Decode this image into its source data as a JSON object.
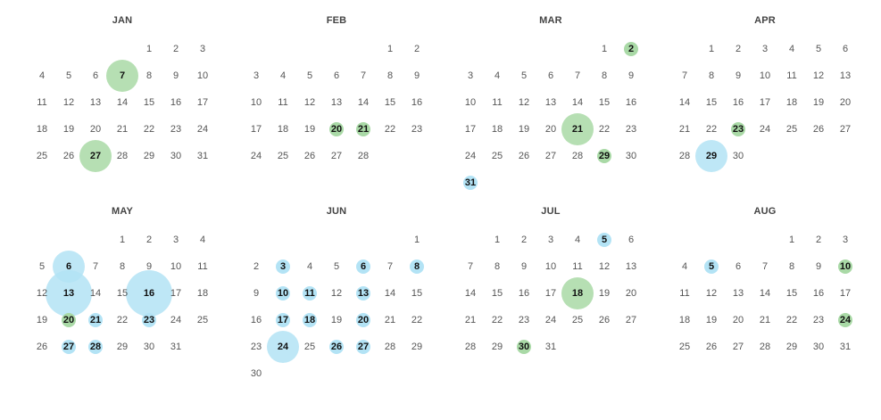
{
  "colors": {
    "green": "#a9d9a6",
    "blue": "#b3e3f5",
    "text": "#555555",
    "marked_text": "#111111"
  },
  "months": [
    {
      "name": "JAN",
      "start_dow": 4,
      "days": 31,
      "marks": [
        {
          "day": 7,
          "level": 3,
          "color": "green"
        },
        {
          "day": 27,
          "level": 3,
          "color": "green"
        }
      ]
    },
    {
      "name": "FEB",
      "start_dow": 5,
      "days": 28,
      "marks": [
        {
          "day": 20,
          "level": 1,
          "color": "green"
        },
        {
          "day": 21,
          "level": 1,
          "color": "green"
        }
      ]
    },
    {
      "name": "MAR",
      "start_dow": 5,
      "days": 31,
      "marks": [
        {
          "day": 2,
          "level": 1,
          "color": "green"
        },
        {
          "day": 21,
          "level": 3,
          "color": "green"
        },
        {
          "day": 29,
          "level": 1,
          "color": "green"
        },
        {
          "day": 31,
          "level": 1,
          "color": "blue"
        }
      ]
    },
    {
      "name": "APR",
      "start_dow": 1,
      "days": 30,
      "marks": [
        {
          "day": 23,
          "level": 1,
          "color": "green"
        },
        {
          "day": 29,
          "level": 3,
          "color": "blue"
        }
      ]
    },
    {
      "name": "MAY",
      "start_dow": 3,
      "days": 31,
      "marks": [
        {
          "day": 6,
          "level": 3,
          "color": "blue"
        },
        {
          "day": 13,
          "level": 5,
          "color": "blue"
        },
        {
          "day": 16,
          "level": 5,
          "color": "blue"
        },
        {
          "day": 20,
          "level": 1,
          "color": "green"
        },
        {
          "day": 21,
          "level": 1,
          "color": "blue"
        },
        {
          "day": 23,
          "level": 1,
          "color": "blue"
        },
        {
          "day": 27,
          "level": 1,
          "color": "blue"
        },
        {
          "day": 28,
          "level": 1,
          "color": "blue"
        }
      ]
    },
    {
      "name": "JUN",
      "start_dow": 6,
      "days": 30,
      "marks": [
        {
          "day": 3,
          "level": 1,
          "color": "blue"
        },
        {
          "day": 6,
          "level": 1,
          "color": "blue"
        },
        {
          "day": 8,
          "level": 1,
          "color": "blue"
        },
        {
          "day": 10,
          "level": 1,
          "color": "blue"
        },
        {
          "day": 11,
          "level": 1,
          "color": "blue"
        },
        {
          "day": 13,
          "level": 1,
          "color": "blue"
        },
        {
          "day": 17,
          "level": 1,
          "color": "blue"
        },
        {
          "day": 18,
          "level": 1,
          "color": "blue"
        },
        {
          "day": 20,
          "level": 1,
          "color": "blue"
        },
        {
          "day": 24,
          "level": 3,
          "color": "blue"
        },
        {
          "day": 26,
          "level": 1,
          "color": "blue"
        },
        {
          "day": 27,
          "level": 1,
          "color": "blue"
        }
      ]
    },
    {
      "name": "JUL",
      "start_dow": 1,
      "days": 31,
      "marks": [
        {
          "day": 5,
          "level": 1,
          "color": "blue"
        },
        {
          "day": 18,
          "level": 3,
          "color": "green"
        },
        {
          "day": 30,
          "level": 1,
          "color": "green"
        }
      ]
    },
    {
      "name": "AUG",
      "start_dow": 4,
      "days": 31,
      "marks": [
        {
          "day": 5,
          "level": 1,
          "color": "blue"
        },
        {
          "day": 10,
          "level": 1,
          "color": "green"
        },
        {
          "day": 24,
          "level": 1,
          "color": "green"
        }
      ]
    }
  ]
}
